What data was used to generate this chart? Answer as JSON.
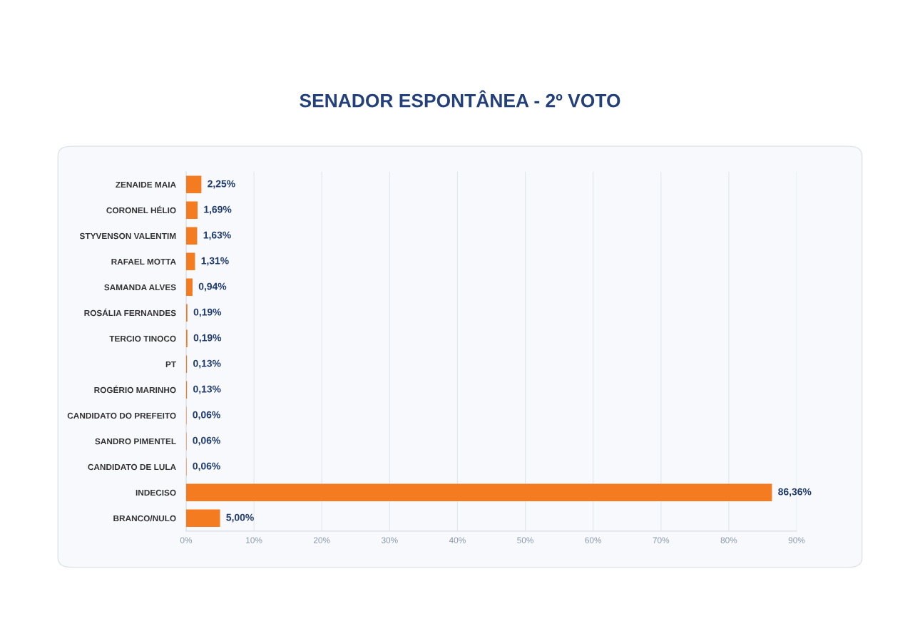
{
  "chart_data": {
    "type": "bar",
    "orientation": "horizontal",
    "title": "SENADOR ESPONTÂNEA - 2º VOTO",
    "categories": [
      "ZENAIDE MAIA",
      "CORONEL HÉLIO",
      "STYVENSON VALENTIM",
      "RAFAEL MOTTA",
      "SAMANDA ALVES",
      "ROSÁLIA FERNANDES",
      "TERCIO TINOCO",
      "PT",
      "ROGÉRIO MARINHO",
      "CANDIDATO DO PREFEITO",
      "SANDRO PIMENTEL",
      "CANDIDATO DE LULA",
      "INDECISO",
      "BRANCO/NULO"
    ],
    "values": [
      2.25,
      1.69,
      1.63,
      1.31,
      0.94,
      0.19,
      0.19,
      0.13,
      0.13,
      0.06,
      0.06,
      0.06,
      86.36,
      5.0
    ],
    "value_labels": [
      "2,25%",
      "1,69%",
      "1,63%",
      "1,31%",
      "0,94%",
      "0,19%",
      "0,19%",
      "0,13%",
      "0,13%",
      "0,06%",
      "0,06%",
      "0,06%",
      "86,36%",
      "5,00%"
    ],
    "color": "#f47b20",
    "xlim": [
      0,
      90
    ],
    "xticks": [
      {
        "value": 0,
        "label": "0%"
      },
      {
        "value": 10,
        "label": "10%"
      },
      {
        "value": 20,
        "label": "20%"
      },
      {
        "value": 30,
        "label": "30%"
      },
      {
        "value": 40,
        "label": "40%"
      },
      {
        "value": 50,
        "label": "50%"
      },
      {
        "value": 60,
        "label": "60%"
      },
      {
        "value": 70,
        "label": "70%"
      },
      {
        "value": 80,
        "label": "80%"
      },
      {
        "value": 90,
        "label": "90%"
      }
    ],
    "grid": "x",
    "legend": false
  }
}
